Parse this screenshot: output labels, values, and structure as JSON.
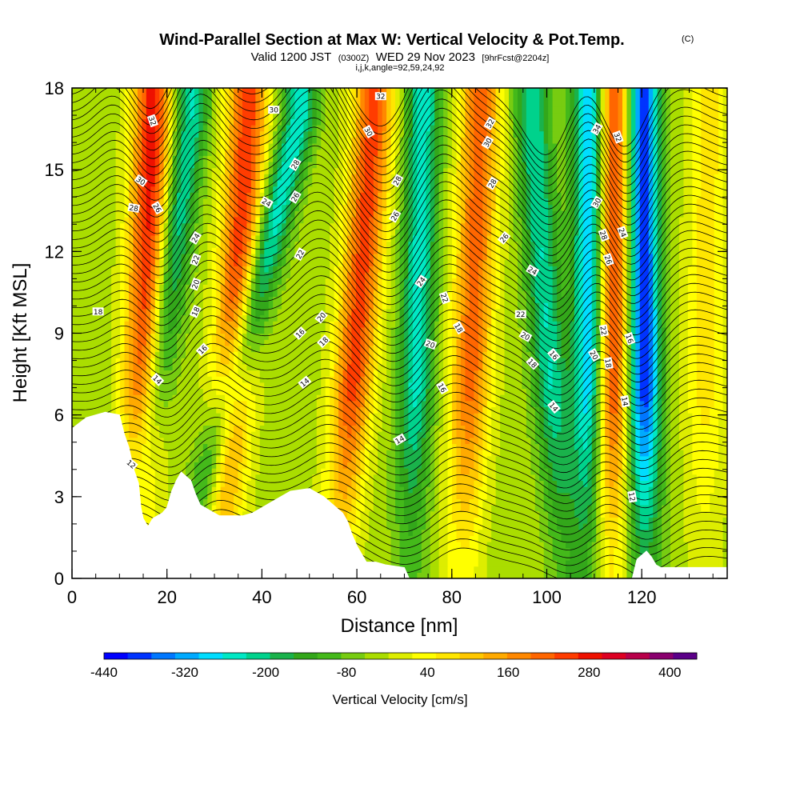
{
  "header": {
    "title": "Wind-Parallel Section at Max W: Vertical Velocity & Pot.Temp.",
    "title_mark": "(C)",
    "valid_prefix": "Valid 1200 JST",
    "valid_utc": "(0300Z)",
    "valid_date": "WED 29 Nov 2023",
    "forecast": "[9hrFcst@2204z]",
    "indices": "i,j,k,angle=92,59,24,92"
  },
  "chart_data": {
    "type": "heatmap",
    "xlabel": "Distance [nm]",
    "ylabel": "Height [Kft MSL]",
    "xlim": [
      0,
      138
    ],
    "ylim": [
      0,
      18
    ],
    "x_ticks": [
      0,
      20,
      40,
      60,
      80,
      100,
      120
    ],
    "y_ticks": [
      0,
      3,
      6,
      9,
      12,
      15,
      18
    ],
    "x_minor_step": 5,
    "y_minor_step": 1,
    "colorbar": {
      "label": "Vertical Velocity [cm/s]",
      "min": -440,
      "max": 440,
      "step": 40,
      "tick_values": [
        -440,
        -320,
        -200,
        -80,
        40,
        160,
        280,
        400
      ],
      "colors": [
        "#0000ff",
        "#0033ff",
        "#0077ff",
        "#00aaff",
        "#00ddff",
        "#00e8c4",
        "#00d28c",
        "#1ab24b",
        "#33a71a",
        "#44b91a",
        "#77cc11",
        "#aadd00",
        "#dded00",
        "#ffff00",
        "#ffe600",
        "#ffc800",
        "#ffaa00",
        "#ff8800",
        "#ff6600",
        "#ff3c00",
        "#ee1100",
        "#dd0022",
        "#b8004a",
        "#8a006e",
        "#5b0088"
      ]
    },
    "updraft_bands": [
      {
        "x_top": 17.0,
        "x_low": 13.5,
        "amp": 360
      },
      {
        "x_top": 37.0,
        "x_low": 31.0,
        "amp": 330
      },
      {
        "x_top": 63.5,
        "x_low": 55.5,
        "amp": 320
      },
      {
        "x_top": 86.0,
        "x_low": 82.0,
        "amp": 280
      },
      {
        "x_top": 114.0,
        "x_low": 113.0,
        "amp": 400
      },
      {
        "x_top": 134.0,
        "x_low": 133.0,
        "amp": 120
      }
    ],
    "downdraft_bands": [
      {
        "x_top": 25.0,
        "x_low": 11.0,
        "amp": 230
      },
      {
        "x_top": 48.0,
        "x_low": 22.0,
        "amp": 250
      },
      {
        "x_top": 74.0,
        "x_low": 71.0,
        "amp": 240
      },
      {
        "x_top": 97.0,
        "x_low": 104.0,
        "amp": 220
      },
      {
        "x_top": 109.5,
        "x_low": 109.0,
        "amp": 400
      },
      {
        "x_top": 120.0,
        "x_low": 120.5,
        "amp": 440
      }
    ],
    "terrain_profile": [
      [
        0,
        5.5
      ],
      [
        3,
        5.9
      ],
      [
        7,
        6.1
      ],
      [
        10,
        6.0
      ],
      [
        11,
        5.3
      ],
      [
        12,
        4.8
      ],
      [
        13,
        4.0
      ],
      [
        14,
        3.5
      ],
      [
        14.5,
        2.6
      ],
      [
        15,
        2.2
      ],
      [
        16,
        1.9
      ],
      [
        17,
        2.2
      ],
      [
        19,
        2.4
      ],
      [
        20,
        2.6
      ],
      [
        21,
        3.2
      ],
      [
        22,
        3.6
      ],
      [
        23,
        3.9
      ],
      [
        25,
        3.6
      ],
      [
        26,
        3.1
      ],
      [
        27,
        2.7
      ],
      [
        29,
        2.5
      ],
      [
        31,
        2.3
      ],
      [
        34,
        2.3
      ],
      [
        36,
        2.3
      ],
      [
        38,
        2.4
      ],
      [
        40,
        2.6
      ],
      [
        42,
        2.8
      ],
      [
        44,
        3.0
      ],
      [
        46,
        3.2
      ],
      [
        50,
        3.3
      ],
      [
        53,
        3.0
      ],
      [
        55,
        2.7
      ],
      [
        57,
        2.4
      ],
      [
        58,
        2.1
      ],
      [
        59,
        1.6
      ],
      [
        60,
        1.2
      ],
      [
        61,
        0.9
      ],
      [
        62,
        0.6
      ],
      [
        64,
        0.6
      ],
      [
        66,
        0.5
      ],
      [
        70,
        0.4
      ],
      [
        71,
        0.0
      ],
      [
        118,
        0.0
      ],
      [
        119,
        0.7
      ],
      [
        121,
        1.0
      ],
      [
        122,
        0.8
      ],
      [
        123,
        0.5
      ],
      [
        124,
        0.4
      ],
      [
        138,
        0.4
      ]
    ],
    "theta_contours": {
      "units": "pot.temp",
      "values": [
        12,
        14,
        16,
        18,
        20,
        22,
        24,
        26,
        28,
        30,
        32,
        34
      ],
      "count": 56
    },
    "contour_labels": [
      {
        "text": "32",
        "x": 17.0,
        "y": 16.8,
        "angle": 70
      },
      {
        "text": "30",
        "x": 14.5,
        "y": 14.6,
        "angle": 35
      },
      {
        "text": "28",
        "x": 13.0,
        "y": 13.6,
        "angle": 10
      },
      {
        "text": "26",
        "x": 18.0,
        "y": 13.6,
        "angle": 60
      },
      {
        "text": "18",
        "x": 5.5,
        "y": 9.8,
        "angle": 0
      },
      {
        "text": "14",
        "x": 18.0,
        "y": 7.3,
        "angle": 45
      },
      {
        "text": "12",
        "x": 12.5,
        "y": 4.2,
        "angle": 40
      },
      {
        "text": "24",
        "x": 26.0,
        "y": 12.5,
        "angle": -60
      },
      {
        "text": "22",
        "x": 26.0,
        "y": 11.7,
        "angle": -70
      },
      {
        "text": "20",
        "x": 26.0,
        "y": 10.8,
        "angle": -70
      },
      {
        "text": "18",
        "x": 26.0,
        "y": 9.8,
        "angle": -65
      },
      {
        "text": "16",
        "x": 27.5,
        "y": 8.4,
        "angle": -45
      },
      {
        "text": "30",
        "x": 42.5,
        "y": 17.2,
        "angle": 0
      },
      {
        "text": "24",
        "x": 41.0,
        "y": 13.8,
        "angle": 30
      },
      {
        "text": "28",
        "x": 47.0,
        "y": 15.2,
        "angle": -60
      },
      {
        "text": "26",
        "x": 47.0,
        "y": 14.0,
        "angle": -60
      },
      {
        "text": "22",
        "x": 48.0,
        "y": 11.9,
        "angle": -60
      },
      {
        "text": "20",
        "x": 52.5,
        "y": 9.6,
        "angle": -50
      },
      {
        "text": "16",
        "x": 48.0,
        "y": 9.0,
        "angle": -45
      },
      {
        "text": "18",
        "x": 53.0,
        "y": 8.7,
        "angle": -45
      },
      {
        "text": "14",
        "x": 49.0,
        "y": 7.2,
        "angle": -40
      },
      {
        "text": "32",
        "x": 65.0,
        "y": 17.7,
        "angle": 0
      },
      {
        "text": "30",
        "x": 62.5,
        "y": 16.4,
        "angle": 60
      },
      {
        "text": "28",
        "x": 68.5,
        "y": 14.6,
        "angle": -60
      },
      {
        "text": "26",
        "x": 68.0,
        "y": 13.3,
        "angle": -60
      },
      {
        "text": "24",
        "x": 73.5,
        "y": 10.9,
        "angle": -55
      },
      {
        "text": "22",
        "x": 78.5,
        "y": 10.3,
        "angle": 70
      },
      {
        "text": "20",
        "x": 75.5,
        "y": 8.6,
        "angle": 20
      },
      {
        "text": "18",
        "x": 81.5,
        "y": 9.2,
        "angle": 60
      },
      {
        "text": "16",
        "x": 78.0,
        "y": 7.0,
        "angle": 60
      },
      {
        "text": "14",
        "x": 69.0,
        "y": 5.1,
        "angle": -30
      },
      {
        "text": "32",
        "x": 88.0,
        "y": 16.7,
        "angle": -60
      },
      {
        "text": "30",
        "x": 87.5,
        "y": 16.0,
        "angle": -60
      },
      {
        "text": "28",
        "x": 88.5,
        "y": 14.5,
        "angle": -60
      },
      {
        "text": "26",
        "x": 91.0,
        "y": 12.5,
        "angle": -50
      },
      {
        "text": "24",
        "x": 97.0,
        "y": 11.3,
        "angle": 30
      },
      {
        "text": "22",
        "x": 94.5,
        "y": 9.7,
        "angle": 0
      },
      {
        "text": "20",
        "x": 95.5,
        "y": 8.9,
        "angle": 30
      },
      {
        "text": "18",
        "x": 97.0,
        "y": 7.9,
        "angle": 45
      },
      {
        "text": "16",
        "x": 101.5,
        "y": 8.2,
        "angle": 50
      },
      {
        "text": "14",
        "x": 101.5,
        "y": 6.3,
        "angle": 50
      },
      {
        "text": "34",
        "x": 110.5,
        "y": 16.5,
        "angle": -60
      },
      {
        "text": "32",
        "x": 115.0,
        "y": 16.2,
        "angle": 70
      },
      {
        "text": "30",
        "x": 110.5,
        "y": 13.8,
        "angle": -60
      },
      {
        "text": "28",
        "x": 112.0,
        "y": 12.6,
        "angle": 70
      },
      {
        "text": "24",
        "x": 116.0,
        "y": 12.7,
        "angle": 70
      },
      {
        "text": "26",
        "x": 113.0,
        "y": 11.7,
        "angle": 70
      },
      {
        "text": "22",
        "x": 112.0,
        "y": 9.1,
        "angle": 80
      },
      {
        "text": "20",
        "x": 110.0,
        "y": 8.2,
        "angle": 60
      },
      {
        "text": "18",
        "x": 113.0,
        "y": 7.9,
        "angle": 80
      },
      {
        "text": "16",
        "x": 117.5,
        "y": 8.8,
        "angle": 70
      },
      {
        "text": "14",
        "x": 116.5,
        "y": 6.5,
        "angle": 80
      },
      {
        "text": "12",
        "x": 118.0,
        "y": 3.0,
        "angle": 80
      }
    ]
  }
}
